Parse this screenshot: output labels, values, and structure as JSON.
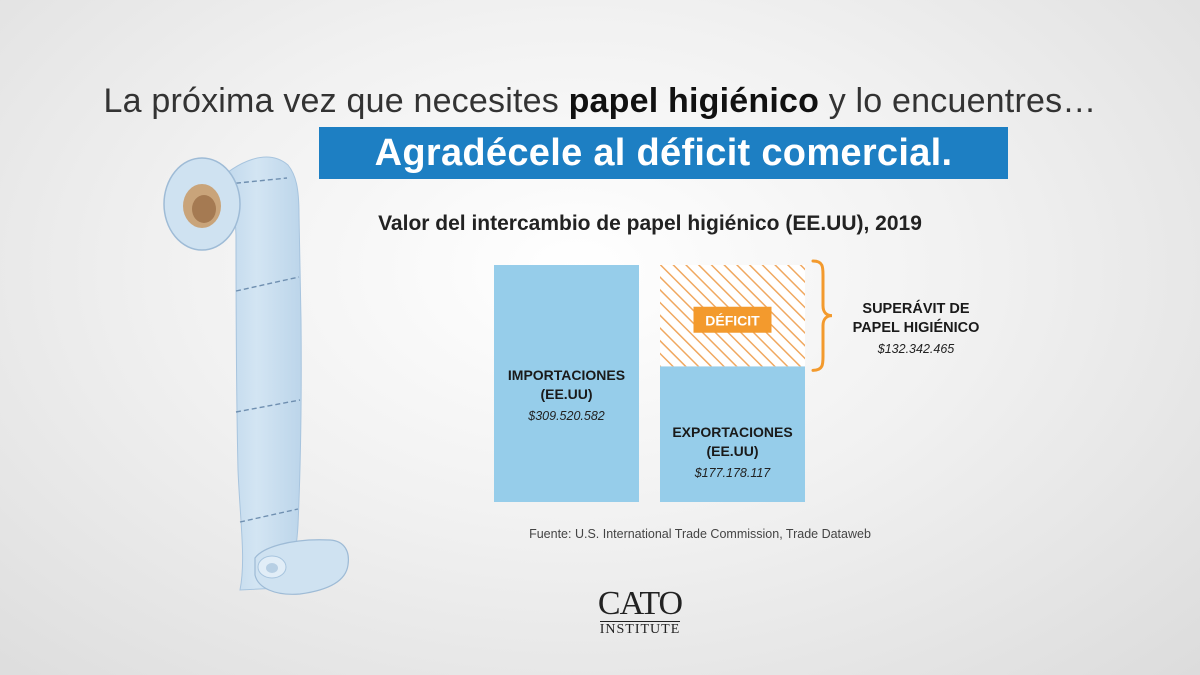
{
  "headline": {
    "part1": "La próxima vez que necesites ",
    "bold": "papel higiénico",
    "part2": " y lo encuentres…"
  },
  "banner": "Agradécele al déficit comercial.",
  "chart_data": {
    "type": "bar",
    "title": "Valor del intercambio de papel higiénico (EE.UU), 2019",
    "categories": [
      "IMPORTACIONES (EE.UU)",
      "EXPORTACIONES (EE.UU)"
    ],
    "values": [
      309520582,
      177178117
    ],
    "value_labels": [
      "$309.520.582",
      "$177.178.117"
    ],
    "category_lines": [
      [
        "IMPORTACIONES",
        "(EE.UU)"
      ],
      [
        "EXPORTACIONES",
        "(EE.UU)"
      ]
    ],
    "deficit_label": "DÉFICIT",
    "surplus": {
      "lines": [
        "SUPERÁVIT DE",
        "PAPEL HIGIÉNICO"
      ],
      "value": 132342465,
      "value_label": "$132.342.465"
    },
    "colors": {
      "bar": "#96cdea",
      "hatch": "#f0a860",
      "deficit_badge": "#f39a2d",
      "brace": "#f39a2d"
    },
    "ylim": [
      0,
      309520582
    ]
  },
  "source": "Fuente: U.S. International Trade Commission, Trade Dataweb",
  "logo": {
    "top": "CATO",
    "bottom": "INSTITUTE"
  }
}
